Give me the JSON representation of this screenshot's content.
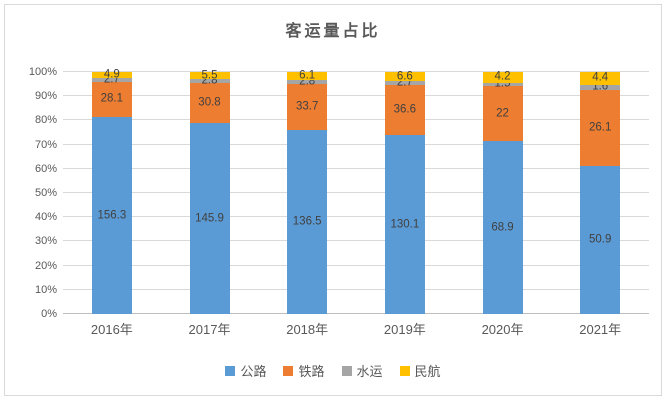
{
  "title": "客运量占比",
  "chart_data": {
    "type": "bar",
    "subtype": "stacked-100-percent",
    "title": "客运量占比",
    "categories": [
      "2016年",
      "2017年",
      "2018年",
      "2019年",
      "2020年",
      "2021年"
    ],
    "series": [
      {
        "name": "公路",
        "color": "#5B9BD5",
        "values": [
          156.3,
          145.9,
          136.5,
          130.1,
          68.9,
          50.9
        ]
      },
      {
        "name": "铁路",
        "color": "#ED7D31",
        "values": [
          28.1,
          30.8,
          33.7,
          36.6,
          22,
          26.1
        ]
      },
      {
        "name": "水运",
        "color": "#A5A5A5",
        "values": [
          2.7,
          2.8,
          2.8,
          2.7,
          1.5,
          1.6
        ]
      },
      {
        "name": "民航",
        "color": "#FFC000",
        "values": [
          4.9,
          5.5,
          6.1,
          6.6,
          4.2,
          4.4
        ]
      }
    ],
    "y_ticks": [
      "0%",
      "10%",
      "20%",
      "30%",
      "40%",
      "50%",
      "60%",
      "70%",
      "80%",
      "90%",
      "100%"
    ],
    "ylim": [
      0,
      100
    ],
    "xlabel": "",
    "ylabel": "",
    "grid": true,
    "data_labels": "centered-in-segment",
    "legend_position": "bottom"
  },
  "colors": {
    "frame_border": "#d9d9d9",
    "gridline": "#d9d9d9",
    "axis_line": "#bfbfbf",
    "axis_text": "#595959",
    "title_text": "#595959",
    "data_label_text": "#404040",
    "background": "#ffffff"
  }
}
